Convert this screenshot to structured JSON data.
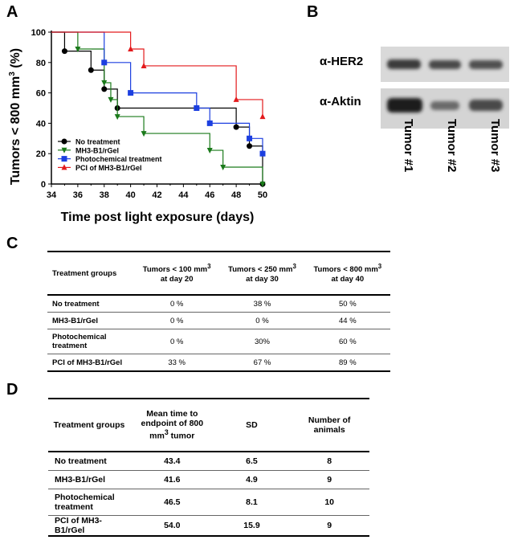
{
  "panels": {
    "a": "A",
    "b": "B",
    "c": "C",
    "d": "D"
  },
  "chart_data": {
    "type": "line",
    "step": true,
    "ylabel_parts": [
      "Tumors < 800 mm",
      "3",
      " (%)"
    ],
    "xlabel": "Time post light exposure (days)",
    "xlim": [
      34,
      50
    ],
    "ylim": [
      0,
      100
    ],
    "x_ticks": [
      34,
      36,
      38,
      40,
      42,
      44,
      46,
      48,
      50
    ],
    "y_ticks": [
      0,
      20,
      40,
      60,
      80,
      100
    ],
    "legend_position": "bottom-left",
    "series": [
      {
        "name": "No treatment",
        "color": "#000000",
        "marker": "circle",
        "steps": [
          [
            34,
            100
          ],
          [
            35,
            87.5
          ],
          [
            37,
            75
          ],
          [
            38,
            62.5
          ],
          [
            39,
            50
          ],
          [
            48,
            37.5
          ],
          [
            49,
            25
          ],
          [
            50,
            0
          ]
        ]
      },
      {
        "name": "MH3-B1/rGel",
        "color": "#1a7a1a",
        "marker": "triangle-down",
        "steps": [
          [
            34,
            100
          ],
          [
            36,
            88.9
          ],
          [
            38,
            66.7
          ],
          [
            38.5,
            55.6
          ],
          [
            39,
            44.4
          ],
          [
            41,
            33.3
          ],
          [
            46,
            22.2
          ],
          [
            47,
            11.1
          ],
          [
            50,
            0
          ]
        ]
      },
      {
        "name": "Photochemical treatment",
        "color": "#1c3fe0",
        "marker": "square",
        "steps": [
          [
            34,
            100
          ],
          [
            38,
            80
          ],
          [
            40,
            60
          ],
          [
            45,
            50
          ],
          [
            46,
            40
          ],
          [
            49,
            30
          ],
          [
            50,
            20
          ]
        ]
      },
      {
        "name": "PCI of MH3-B1/rGel",
        "color": "#e31a1c",
        "marker": "triangle-up",
        "steps": [
          [
            34,
            100
          ],
          [
            40,
            88.9
          ],
          [
            41,
            77.8
          ],
          [
            48,
            55.6
          ],
          [
            50,
            44.4
          ]
        ]
      }
    ]
  },
  "blot": {
    "rows": [
      "α-HER2",
      "α-Aktin"
    ],
    "lanes": [
      "Tumor #1",
      "Tumor #2",
      "Tumor #3"
    ]
  },
  "table_c": {
    "headers": [
      {
        "text": "Treatment groups"
      },
      {
        "line1": "Tumors < 100 mm",
        "sup": "3",
        "line2": "at day 20"
      },
      {
        "line1": "Tumors < 250 mm",
        "sup": "3",
        "line2": "at day 30"
      },
      {
        "line1": "Tumors < 800 mm",
        "sup": "3",
        "line2": "at day 40"
      }
    ],
    "rows": [
      [
        "No treatment",
        "0 %",
        "38 %",
        "50 %"
      ],
      [
        "MH3-B1/rGel",
        "0 %",
        "0 %",
        "44 %"
      ],
      [
        "Photochemical treatment",
        "0 %",
        "30%",
        "60 %"
      ],
      [
        "PCI of MH3-B1/rGel",
        "33 %",
        "67 %",
        "89 %"
      ]
    ]
  },
  "table_d": {
    "headers": {
      "group": "Treatment groups",
      "mean_parts": [
        "Mean time to endpoint of 800 mm",
        "3",
        " tumor"
      ],
      "sd": "SD",
      "n": "Number of animals"
    },
    "rows": [
      [
        "No treatment",
        "43.4",
        "6.5",
        "8"
      ],
      [
        "MH3-B1/rGel",
        "41.6",
        "4.9",
        "9"
      ],
      [
        "Photochemical treatment",
        "46.5",
        "8.1",
        "10"
      ],
      [
        "PCI of MH3-B1/rGel",
        "54.0",
        "15.9",
        "9"
      ]
    ]
  }
}
